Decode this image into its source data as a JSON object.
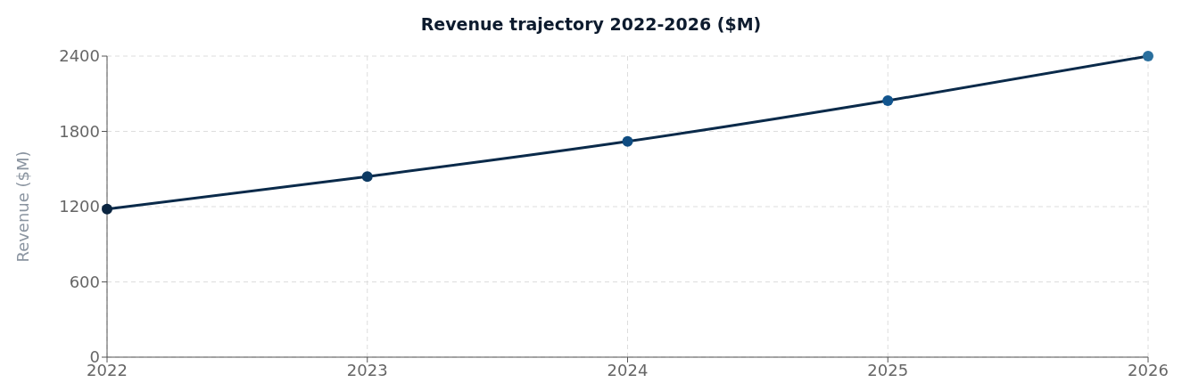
{
  "chart_data": {
    "type": "line",
    "title": "Revenue trajectory 2022-2026 ($M)",
    "ylabel": "Revenue ($M)",
    "x": [
      2022,
      2023,
      2024,
      2025,
      2026
    ],
    "series": [
      {
        "color": "#0a2a4a",
        "colors": [
          "#0a2540",
          "#0d3a63",
          "#0f4c81",
          "#12558e",
          "#2a6f9e"
        ],
        "values": [
          1180,
          1440,
          1720,
          2045,
          2400
        ]
      }
    ],
    "xlim": [
      2022,
      2026
    ],
    "xticks": [
      2022,
      2023,
      2024,
      2025,
      2026
    ],
    "ylim": [
      0,
      2400
    ],
    "yticks": [
      0,
      600,
      1200,
      1800,
      2400
    ],
    "grid": true,
    "marker": "circle",
    "line_style": "solid"
  }
}
